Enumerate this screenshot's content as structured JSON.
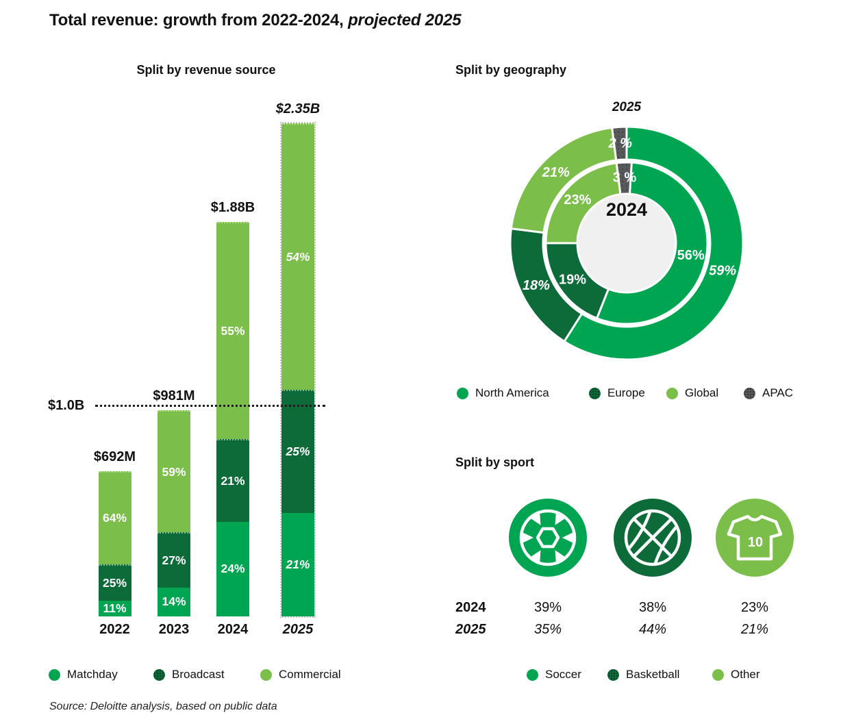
{
  "title": {
    "regular": "Total revenue: growth from 2022-2024,",
    "italic": "projected 2025"
  },
  "source_note": "Source: Deloitte analysis, based on public data",
  "colors": {
    "green": "#00a551",
    "dark_green": "#0d6b3a",
    "light_green": "#7bbf4a",
    "gray": "#58595b",
    "donut_hole": "#f0f0f1",
    "text": "#111111"
  },
  "chart_data": [
    {
      "id": "revenue_by_source",
      "type": "bar",
      "stacked": true,
      "title": "Split by revenue source",
      "categories": [
        "2022",
        "2023",
        "2024",
        "2025"
      ],
      "totals_musd": [
        692,
        981,
        1880,
        2350
      ],
      "total_labels": [
        "$692M",
        "$981M",
        "$1.88B",
        "$2.35B"
      ],
      "projected_flags": [
        false,
        false,
        false,
        true
      ],
      "series": [
        {
          "name": "Matchday",
          "color_key": "green",
          "values_pct": [
            11,
            14,
            24,
            21
          ]
        },
        {
          "name": "Broadcast",
          "color_key": "dark_green",
          "values_pct": [
            25,
            27,
            21,
            25
          ]
        },
        {
          "name": "Commercial",
          "color_key": "light_green",
          "values_pct": [
            64,
            59,
            55,
            54
          ]
        }
      ],
      "reference_line": {
        "label": "$1.0B",
        "value_musd": 1000
      },
      "ylim_musd": [
        0,
        2350
      ],
      "legend": [
        {
          "label": "Matchday",
          "color_key": "green",
          "textured": false
        },
        {
          "label": "Broadcast",
          "color_key": "dark_green",
          "textured": true
        },
        {
          "label": "Commercial",
          "color_key": "light_green",
          "textured": false
        }
      ]
    },
    {
      "id": "revenue_by_geography",
      "type": "pie",
      "subtype": "double_donut",
      "title": "Split by geography",
      "top_label": "2025",
      "center_label": "2024",
      "segments": [
        "North America",
        "Europe",
        "Global",
        "APAC"
      ],
      "segment_color_keys": [
        "green",
        "dark_green",
        "light_green",
        "gray"
      ],
      "outer_ring": {
        "year": "2025",
        "projected": true,
        "values": [
          59,
          18,
          21,
          2
        ],
        "labels": [
          "59%",
          "18%",
          "21%",
          "2 %"
        ]
      },
      "inner_ring": {
        "year": "2024",
        "projected": false,
        "values": [
          56,
          19,
          23,
          3
        ],
        "labels": [
          "56%",
          "19%",
          "23%",
          "3 %"
        ]
      },
      "legend": [
        {
          "label": "North America",
          "color_key": "green",
          "textured": false
        },
        {
          "label": "Europe",
          "color_key": "dark_green",
          "textured": true
        },
        {
          "label": "Global",
          "color_key": "light_green",
          "textured": false
        },
        {
          "label": "APAC",
          "color_key": "gray",
          "textured": true
        }
      ]
    },
    {
      "id": "revenue_by_sport",
      "type": "table",
      "title": "Split by sport",
      "columns": [
        {
          "name": "Soccer",
          "icon": "soccer-ball-icon",
          "color_key": "green",
          "icon_text": ""
        },
        {
          "name": "Basketball",
          "icon": "basketball-icon",
          "color_key": "dark_green",
          "icon_text": ""
        },
        {
          "name": "Other",
          "icon": "jersey-icon",
          "color_key": "light_green",
          "icon_text": "10"
        }
      ],
      "rows": [
        {
          "year": "2024",
          "projected": false,
          "values": [
            "39%",
            "38%",
            "23%"
          ]
        },
        {
          "year": "2025",
          "projected": true,
          "values": [
            "35%",
            "44%",
            "21%"
          ]
        }
      ],
      "legend": [
        {
          "label": "Soccer",
          "color_key": "green",
          "textured": false
        },
        {
          "label": "Basketball",
          "color_key": "dark_green",
          "textured": true
        },
        {
          "label": "Other",
          "color_key": "light_green",
          "textured": false
        }
      ]
    }
  ]
}
